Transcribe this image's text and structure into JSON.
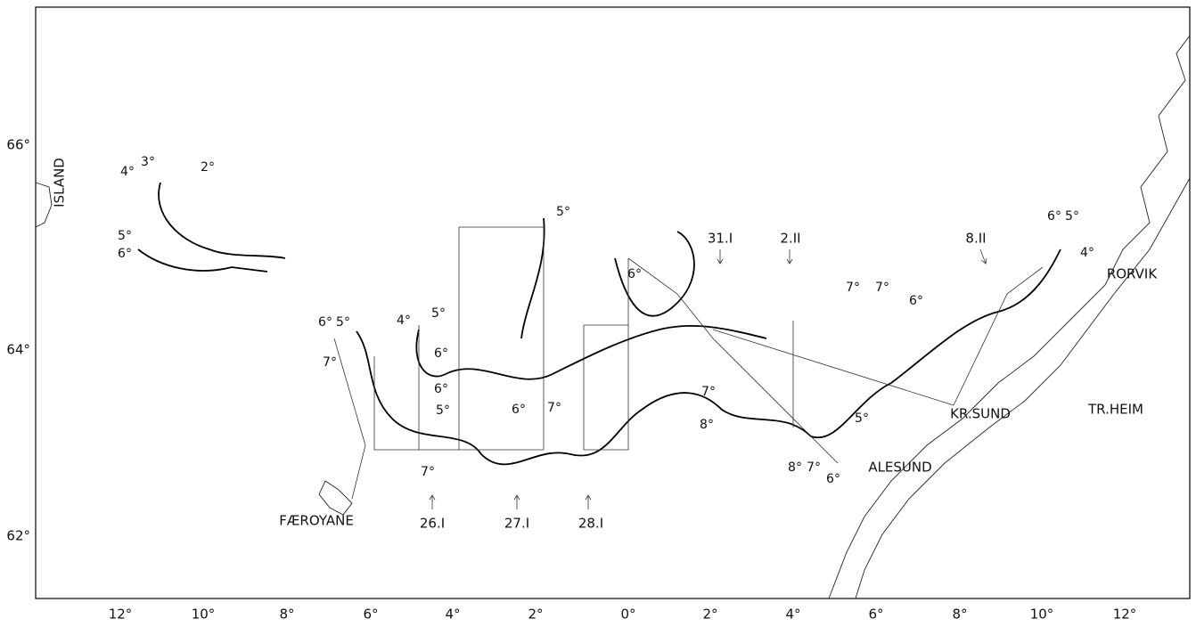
{
  "axes": {
    "longitude_labels": [
      "12°",
      "10°",
      "8°",
      "6°",
      "4°",
      "2°",
      "0°",
      "2°",
      "4°",
      "6°",
      "8°",
      "10°",
      "12°"
    ],
    "latitude_labels": [
      "66°",
      "64°",
      "62°"
    ]
  },
  "places": [
    "ISLAND",
    "FÆROYANE",
    "RORVIK",
    "TR.HEIM",
    "KR.SUND",
    "ALESUND"
  ],
  "dates": [
    "26.I",
    "27.I",
    "28.I",
    "31.I",
    "2.II",
    "8.II"
  ],
  "isotherms": [
    "4°",
    "3°",
    "2°",
    "5°",
    "6°",
    "6°",
    "5°",
    "7°",
    "4°",
    "5°",
    "6°",
    "6°",
    "5°",
    "5°",
    "6°",
    "6°",
    "7°",
    "7°",
    "7°",
    "8°",
    "7°",
    "7°",
    "6°",
    "5°",
    "8°",
    "7°",
    "6°",
    "6°",
    "5°",
    "4°"
  ]
}
